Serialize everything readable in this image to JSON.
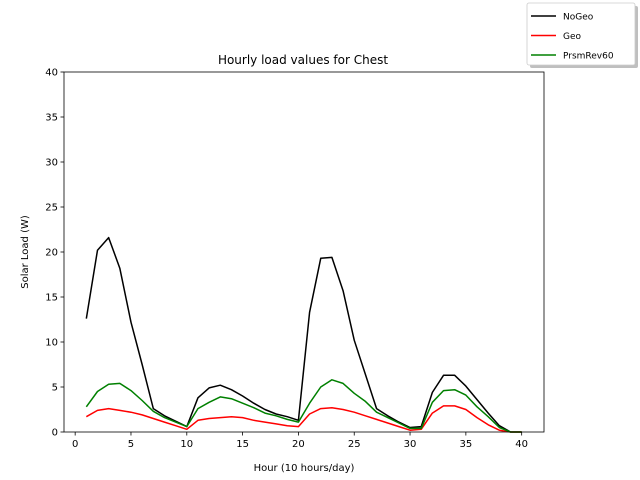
{
  "chart_data": {
    "type": "line",
    "title": "Hourly load values for Chest",
    "xlabel": "Hour (10 hours/day)",
    "ylabel": "Solar Load (W)",
    "xlim": [
      -1,
      42
    ],
    "ylim": [
      0,
      40
    ],
    "xticks": [
      0,
      5,
      10,
      15,
      20,
      25,
      30,
      35,
      40
    ],
    "yticks": [
      0,
      5,
      10,
      15,
      20,
      25,
      30,
      35,
      40
    ],
    "grid": false,
    "legend_position": "top-right",
    "x": [
      1,
      2,
      3,
      4,
      5,
      6,
      7,
      8,
      9,
      10,
      11,
      12,
      13,
      14,
      15,
      16,
      17,
      18,
      19,
      20,
      21,
      22,
      23,
      24,
      25,
      26,
      27,
      28,
      29,
      30,
      31,
      32,
      33,
      34,
      35,
      36,
      37,
      38,
      39,
      40
    ],
    "series": [
      {
        "name": "NoGeo",
        "color": "#000000",
        "values": [
          12.6,
          20.2,
          21.6,
          18.2,
          12.2,
          7.5,
          2.6,
          1.8,
          1.2,
          0.6,
          3.8,
          4.9,
          5.2,
          4.7,
          4.0,
          3.2,
          2.5,
          2.0,
          1.7,
          1.3,
          13.3,
          19.3,
          19.4,
          15.7,
          10.2,
          6.4,
          2.6,
          1.8,
          1.1,
          0.5,
          0.6,
          4.4,
          6.3,
          6.3,
          5.1,
          3.6,
          2.1,
          0.7,
          0.0,
          0.0
        ]
      },
      {
        "name": "Geo",
        "color": "#ff0000",
        "values": [
          1.7,
          2.4,
          2.6,
          2.4,
          2.2,
          1.9,
          1.5,
          1.1,
          0.7,
          0.3,
          1.3,
          1.5,
          1.6,
          1.7,
          1.6,
          1.3,
          1.1,
          0.9,
          0.7,
          0.6,
          2.0,
          2.6,
          2.7,
          2.5,
          2.2,
          1.8,
          1.4,
          1.0,
          0.6,
          0.2,
          0.3,
          2.1,
          2.9,
          2.9,
          2.5,
          1.6,
          0.8,
          0.2,
          0.0,
          0.0
        ]
      },
      {
        "name": "PrsmRev60",
        "color": "#008000",
        "values": [
          2.8,
          4.5,
          5.3,
          5.4,
          4.6,
          3.5,
          2.3,
          1.6,
          1.1,
          0.6,
          2.6,
          3.3,
          3.9,
          3.7,
          3.2,
          2.7,
          2.1,
          1.8,
          1.4,
          1.1,
          3.2,
          5.0,
          5.8,
          5.4,
          4.3,
          3.4,
          2.2,
          1.6,
          1.0,
          0.4,
          0.4,
          3.3,
          4.6,
          4.7,
          4.1,
          2.8,
          1.7,
          0.5,
          0.0,
          0.0
        ]
      }
    ]
  }
}
